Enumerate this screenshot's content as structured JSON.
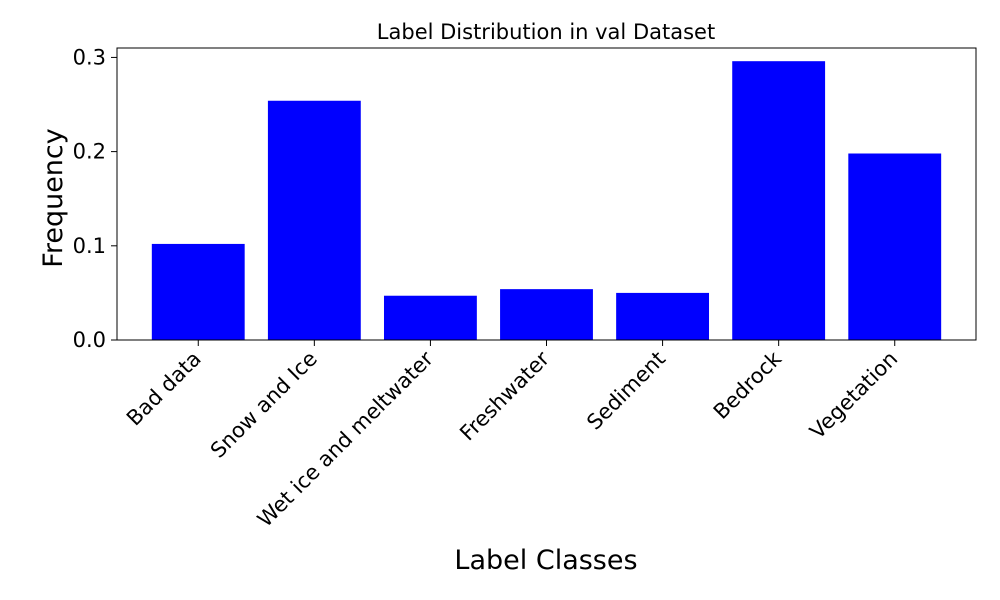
{
  "chart_data": {
    "type": "bar",
    "title": "Label Distribution in val Dataset",
    "xlabel": "Label Classes",
    "ylabel": "Frequency",
    "categories": [
      "Bad data",
      "Snow and Ice",
      "Wet ice and meltwater",
      "Freshwater",
      "Sediment",
      "Bedrock",
      "Vegetation"
    ],
    "values": [
      0.102,
      0.254,
      0.047,
      0.054,
      0.05,
      0.296,
      0.198
    ],
    "ylim": [
      0,
      0.31
    ],
    "yticks": [
      0.0,
      0.1,
      0.2,
      0.3
    ],
    "ytick_labels": [
      "0.0",
      "0.1",
      "0.2",
      "0.3"
    ],
    "bar_color": "#0000ff",
    "grid": false,
    "legend": false
  }
}
